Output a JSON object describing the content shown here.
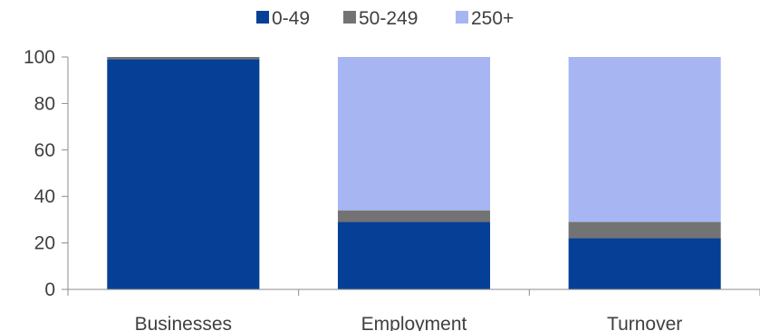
{
  "chart_data": {
    "type": "bar",
    "stacked": true,
    "categories": [
      "Businesses",
      "Employment",
      "Turnover"
    ],
    "series": [
      {
        "name": "0-49",
        "values": [
          99,
          29,
          22
        ],
        "color": "#063f96"
      },
      {
        "name": "50-249",
        "values": [
          1,
          5,
          7
        ],
        "color": "#737373"
      },
      {
        "name": "250+",
        "values": [
          0,
          66,
          71
        ],
        "color": "#a7b6f2"
      }
    ],
    "ylim": [
      0,
      100
    ],
    "yticks": [
      "0",
      "20",
      "40",
      "60",
      "80",
      "100"
    ],
    "legend": "top-center",
    "grid": false,
    "title": "",
    "xlabel": "",
    "ylabel": ""
  }
}
